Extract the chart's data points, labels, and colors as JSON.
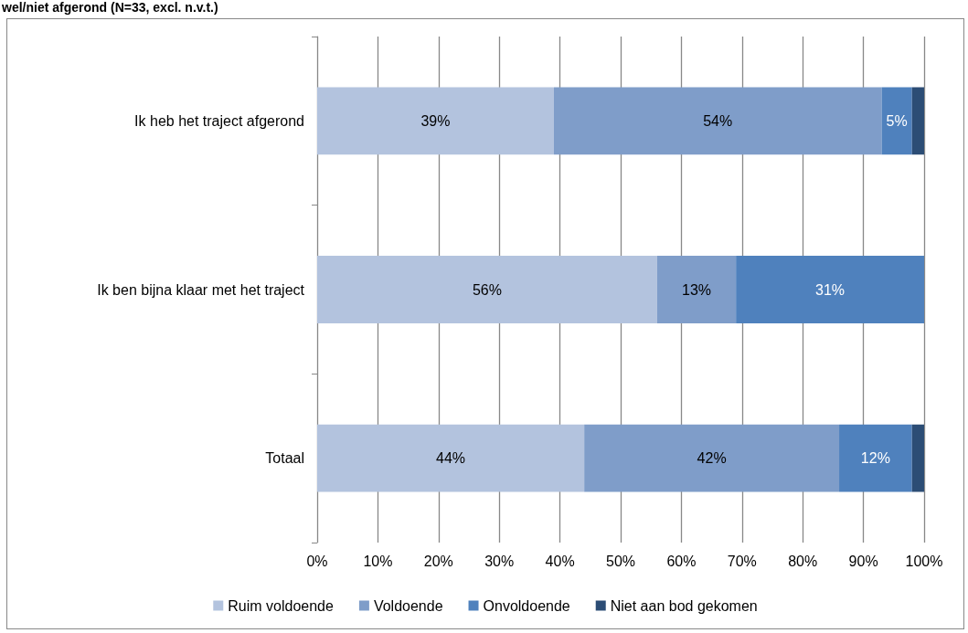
{
  "chart_data": {
    "type": "bar",
    "orientation": "horizontal",
    "stacked": true,
    "title": "wel/niet afgerond (N=33, excl. n.v.t.)",
    "categories": [
      "Ik heb het traject afgerond",
      "Ik ben bijna klaar met het traject",
      "Totaal"
    ],
    "series": [
      {
        "name": "Ruim voldoende",
        "color": "#b3c3de",
        "values": [
          39,
          56,
          44
        ],
        "value_labels": [
          "39%",
          "56%",
          "44%"
        ]
      },
      {
        "name": "Voldoende",
        "color": "#7f9dc9",
        "values": [
          54,
          13,
          42
        ],
        "value_labels": [
          "54%",
          "13%",
          "42%"
        ]
      },
      {
        "name": "Onvoldoende",
        "color": "#4f81bd",
        "values": [
          5,
          31,
          12
        ],
        "value_labels": [
          "5%",
          "31%",
          "12%"
        ]
      },
      {
        "name": "Niet aan bod gekomen",
        "color": "#2c4d75",
        "values": [
          2,
          0,
          2
        ],
        "value_labels": [
          null,
          null,
          null
        ]
      }
    ],
    "xlim": [
      0,
      100
    ],
    "xticks": [
      {
        "value": 0,
        "label": "0%"
      },
      {
        "value": 10,
        "label": "10%"
      },
      {
        "value": 20,
        "label": "20%"
      },
      {
        "value": 30,
        "label": "30%"
      },
      {
        "value": 40,
        "label": "40%"
      },
      {
        "value": 50,
        "label": "50%"
      },
      {
        "value": 60,
        "label": "60%"
      },
      {
        "value": 70,
        "label": "70%"
      },
      {
        "value": 80,
        "label": "80%"
      },
      {
        "value": 90,
        "label": "90%"
      },
      {
        "value": 100,
        "label": "100%"
      }
    ],
    "grid": "x",
    "legend": "bottom"
  }
}
